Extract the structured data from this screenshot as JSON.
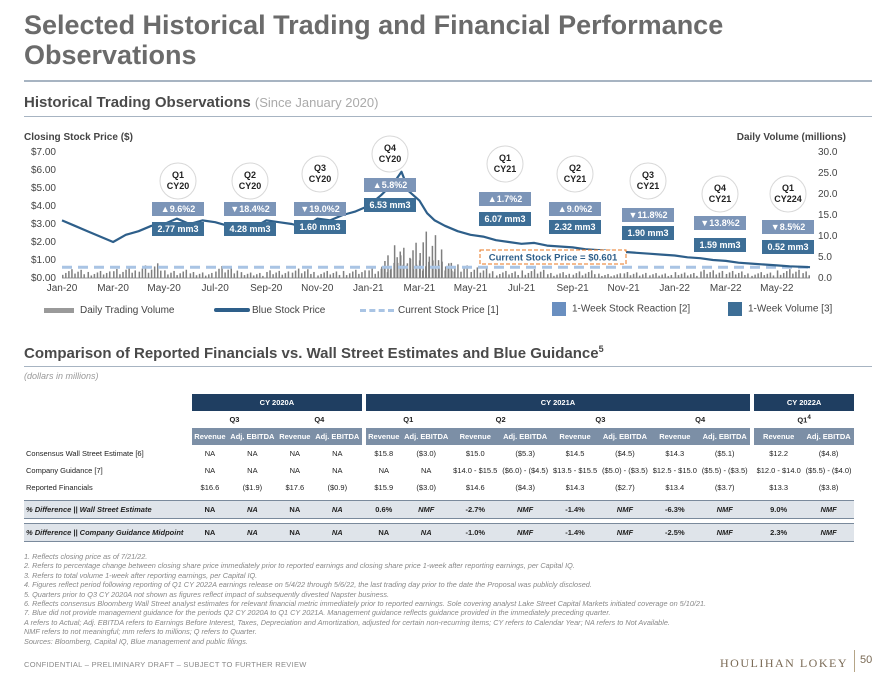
{
  "title": "Selected Historical Trading and Financial Performance Observations",
  "section1": {
    "title": "Historical Trading Observations",
    "subtitle": "(Since January 2020)"
  },
  "section2": {
    "title": "Comparison of Reported Financials vs. Wall Street Estimates and Blue Guidance",
    "sup": "5",
    "note": "(dollars in millions)"
  },
  "chart_data": {
    "type": "line",
    "title": "",
    "ylabel": "Closing Stock Price ($)",
    "y2label": "Daily Volume (millions)",
    "ylim": [
      0,
      7
    ],
    "y2lim": [
      0,
      30
    ],
    "yticks": [
      "$7.00",
      "$6.00",
      "$5.00",
      "$4.00",
      "$3.00",
      "$2.00",
      "$1.00",
      "$0.00"
    ],
    "y2ticks": [
      "30.0",
      "25.0",
      "20.0",
      "15.0",
      "10.0",
      "5.0",
      "0.0"
    ],
    "xticks": [
      "Jan-20",
      "Mar-20",
      "May-20",
      "Jul-20",
      "Sep-20",
      "Nov-20",
      "Jan-21",
      "Mar-21",
      "May-21",
      "Jul-21",
      "Sep-21",
      "Nov-21",
      "Jan-22",
      "Mar-22",
      "May-22"
    ],
    "current_price": 0.6,
    "current_price_label": "Current Stock Price = $0.60",
    "current_price_sup": "1",
    "price_series": {
      "name": "Blue Stock Price",
      "months": [
        0,
        0.5,
        1,
        1.5,
        2,
        2.5,
        3,
        3.5,
        4,
        4.5,
        5,
        5.5,
        6,
        6.5,
        7,
        7.5,
        8,
        8.5,
        9,
        9.5,
        10,
        10.5,
        11,
        11.5,
        12,
        12.5,
        13,
        13.3,
        13.6,
        14,
        14.3,
        14.6,
        15,
        15.5,
        16,
        16.5,
        17,
        17.5,
        18,
        18.5,
        19,
        19.5,
        20,
        20.5,
        21,
        21.5,
        22,
        22.5,
        23,
        23.5,
        24,
        24.5,
        25,
        25.5,
        26,
        26.5,
        27,
        27.5,
        28,
        28.5,
        29,
        29.3
      ],
      "values": [
        3.2,
        2.9,
        2.6,
        2.3,
        2.0,
        2.4,
        2.6,
        2.9,
        3.0,
        3.3,
        3.0,
        3.2,
        3.1,
        2.9,
        3.0,
        2.8,
        3.2,
        3.1,
        3.0,
        2.8,
        3.3,
        3.2,
        3.5,
        3.7,
        4.0,
        4.6,
        5.3,
        5.9,
        4.8,
        4.3,
        3.6,
        3.2,
        2.9,
        2.6,
        2.4,
        2.3,
        2.1,
        2.0,
        1.9,
        1.95,
        1.8,
        1.75,
        1.7,
        1.6,
        1.55,
        1.5,
        1.45,
        1.4,
        1.35,
        1.3,
        1.25,
        1.15,
        1.1,
        1.0,
        0.95,
        0.85,
        0.8,
        0.75,
        0.7,
        0.65,
        0.62,
        0.6
      ]
    },
    "volume_series": {
      "name": "Daily Trading Volume",
      "months": [
        0,
        1,
        2,
        3,
        4,
        5,
        6,
        7,
        8,
        9,
        10,
        11,
        12,
        12.5,
        13,
        13.5,
        14,
        14.5,
        15,
        16,
        17,
        18,
        19,
        20,
        21,
        22,
        23,
        24,
        25,
        26,
        27,
        28,
        29
      ],
      "values": [
        1.5,
        1.2,
        1.8,
        2.5,
        1.4,
        1.1,
        2.2,
        1.0,
        1.3,
        1.6,
        1.2,
        1.4,
        2.0,
        4.5,
        6.0,
        3.5,
        8.5,
        3.0,
        2.5,
        1.8,
        1.2,
        1.5,
        1.0,
        1.3,
        0.8,
        1.1,
        0.9,
        1.0,
        1.4,
        1.2,
        1.0,
        1.5,
        1.3
      ]
    },
    "legend": [
      "Daily Trading Volume",
      "Blue Stock Price",
      "Current Stock Price [1]",
      "1-Week Stock Reaction [2]",
      "1-Week Volume [3]"
    ],
    "quarters": [
      {
        "q": "Q1",
        "cy": "CY20",
        "sup": "",
        "reaction": "▲9.6%",
        "up": true,
        "volume": "2.77 mm"
      },
      {
        "q": "Q2",
        "cy": "CY20",
        "sup": "",
        "reaction": "▼18.4%",
        "up": false,
        "volume": "4.28 mm"
      },
      {
        "q": "Q3",
        "cy": "CY20",
        "sup": "",
        "reaction": "▼19.0%",
        "up": false,
        "volume": "1.60 mm"
      },
      {
        "q": "Q4",
        "cy": "CY20",
        "sup": "",
        "reaction": "▲5.8%",
        "up": true,
        "volume": "6.53 mm"
      },
      {
        "q": "Q1",
        "cy": "CY21",
        "sup": "",
        "reaction": "▲1.7%",
        "up": true,
        "volume": "6.07 mm"
      },
      {
        "q": "Q2",
        "cy": "CY21",
        "sup": "",
        "reaction": "▲9.0%",
        "up": true,
        "volume": "2.32 mm"
      },
      {
        "q": "Q3",
        "cy": "CY21",
        "sup": "",
        "reaction": "▼11.8%",
        "up": false,
        "volume": "1.90 mm"
      },
      {
        "q": "Q4",
        "cy": "CY21",
        "sup": "",
        "reaction": "▼13.8%",
        "up": false,
        "volume": "1.59 mm"
      },
      {
        "q": "Q1",
        "cy": "CY22",
        "sup": "4",
        "reaction": "▼8.5%",
        "up": false,
        "volume": "0.52 mm"
      }
    ]
  },
  "table": {
    "groups": [
      "CY 2020A",
      "CY 2021A",
      "CY 2022A"
    ],
    "quarters": [
      "Q3",
      "Q4",
      "Q1",
      "Q2",
      "Q3",
      "Q4",
      "Q1"
    ],
    "q_sup": "4",
    "col_rev": "Revenue",
    "col_ebitda": "Adj. EBITDA",
    "rows": [
      {
        "label": "Consensus Wall Street Estimate [6]",
        "cells": [
          "NA",
          "NA",
          "NA",
          "NA",
          "$15.8",
          "($3.0)",
          "$15.0",
          "($5.3)",
          "$14.5",
          "($4.5)",
          "$14.3",
          "($5.1)",
          "$12.2",
          "($4.8)"
        ]
      },
      {
        "label": "Company Guidance [7]",
        "cells": [
          "NA",
          "NA",
          "NA",
          "NA",
          "NA",
          "NA",
          "$14.0 - $15.5",
          "($6.0) - ($4.5)",
          "$13.5 - $15.5",
          "($5.0) - ($3.5)",
          "$12.5 - $15.0",
          "($5.5) - ($3.5)",
          "$12.0 - $14.0",
          "($5.5) - ($4.0)"
        ]
      },
      {
        "label": "Reported Financials",
        "cells": [
          "$16.6",
          "($1.9)",
          "$17.6",
          "($0.9)",
          "$15.9",
          "($3.0)",
          "$14.6",
          "($4.3)",
          "$14.3",
          "($2.7)",
          "$13.4",
          "($3.7)",
          "$13.3",
          "($3.8)"
        ]
      }
    ],
    "pct_rows": [
      {
        "label": "% Difference || Wall Street Estimate",
        "cells": [
          "NA",
          "NA",
          "NA",
          "NA",
          "0.6%",
          "NMF",
          "-2.7%",
          "NMF",
          "-1.4%",
          "NMF",
          "-6.3%",
          "NMF",
          "9.0%",
          "NMF"
        ]
      },
      {
        "label": "% Difference || Company Guidance Midpoint",
        "cells": [
          "NA",
          "NA",
          "NA",
          "NA",
          "NA",
          "NA",
          "-1.0%",
          "NMF",
          "-1.4%",
          "NMF",
          "-2.5%",
          "NMF",
          "2.3%",
          "NMF"
        ]
      }
    ]
  },
  "notes": [
    "1.  Reflects closing price as of 7/21/22.",
    "2.  Refers to percentage change between closing share price immediately prior to reported earnings and closing share price 1-week after reporting earnings, per Capital IQ.",
    "3.  Refers to total volume 1-week after reporting earnings, per Capital IQ.",
    "4.  Figures reflect period following reporting of Q1 CY 2022A earnings release on 5/4/22 through 5/6/22, the last trading day prior to the date the Proposal was publicly disclosed.",
    "5.  Quarters prior to Q3 CY 2020A not shown as figures reflect impact of subsequently divested Napster business.",
    "6.  Reflects consensus Bloomberg Wall Street analyst estimates for relevant financial metric immediately prior to reported earnings. Sole covering analyst Lake Street Capital Markets initiated coverage on 5/10/21.",
    "7.  Blue did not provide management guidance for the periods Q2 CY 2020A to Q1 CY 2021A. Management guidance reflects guidance provided in the immediately preceding quarter.",
    "A refers to Actual; Adj. EBITDA refers to Earnings Before Interest, Taxes, Depreciation and Amortization, adjusted for certain non-recurring items; CY refers to Calendar Year; NA refers to Not Available.",
    "NMF refers to not meaningful; mm refers to millions; Q refers to Quarter.",
    "Sources: Bloomberg, Capital IQ, Blue management and public filings."
  ],
  "footer": {
    "confidential": "CONFIDENTIAL – PRELIMINARY DRAFT – SUBJECT TO FURTHER REVIEW",
    "logo": "HOULIHAN LOKEY",
    "page": "50"
  },
  "colors": {
    "navy": "#1f3e61",
    "line": "#2e5f8a",
    "callout": "#7c95b8",
    "legend_box": "#6a8fc0",
    "volume": "#7f7f7f",
    "current": "#a9c4e4",
    "accent": "#e87722"
  }
}
